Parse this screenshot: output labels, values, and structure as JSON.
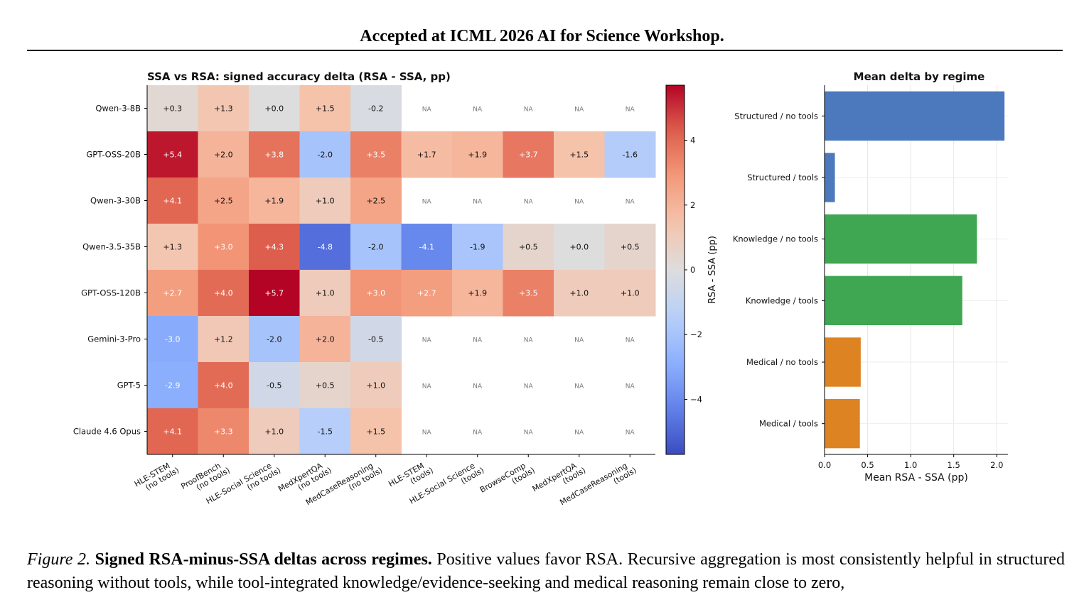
{
  "header": {
    "text": "Accepted at ICML 2026 AI for Science Workshop."
  },
  "chart_data": [
    {
      "type": "heatmap",
      "title": "SSA vs RSA: signed accuracy delta (RSA - SSA, pp)",
      "rows": [
        "Qwen-3-8B",
        "GPT-OSS-20B",
        "Qwen-3-30B",
        "Qwen-3.5-35B",
        "GPT-OSS-120B",
        "Gemini-3-Pro",
        "GPT-5",
        "Claude 4.6 Opus"
      ],
      "columns": [
        "HLE-STEM\n(no tools)",
        "ProofBench\n(no tools)",
        "HLE-Social Science\n(no tools)",
        "MedXpertQA\n(no tools)",
        "MedCaseReasoning\n(no tools)",
        "HLE-STEM\n(tools)",
        "HLE-Social Science\n(tools)",
        "BrowseComp\n(tools)",
        "MedXpertQA\n(tools)",
        "MedCaseReasoning\n(tools)"
      ],
      "values": [
        [
          0.3,
          1.3,
          0.0,
          1.5,
          -0.2,
          null,
          null,
          null,
          null,
          null
        ],
        [
          5.4,
          2.0,
          3.8,
          -2.0,
          3.5,
          1.7,
          1.9,
          3.7,
          1.5,
          -1.6
        ],
        [
          4.1,
          2.5,
          1.9,
          1.0,
          2.5,
          null,
          null,
          null,
          null,
          null
        ],
        [
          1.3,
          3.0,
          4.3,
          -4.8,
          -2.0,
          -4.1,
          -1.9,
          0.5,
          0.0,
          0.5
        ],
        [
          2.7,
          4.0,
          5.7,
          1.0,
          3.0,
          2.7,
          1.9,
          3.5,
          1.0,
          1.0
        ],
        [
          -3.0,
          1.2,
          -2.0,
          2.0,
          -0.5,
          null,
          null,
          null,
          null,
          null
        ],
        [
          -2.9,
          4.0,
          -0.5,
          0.5,
          1.0,
          null,
          null,
          null,
          null,
          null
        ],
        [
          4.1,
          3.3,
          1.0,
          -1.5,
          1.5,
          null,
          null,
          null,
          null,
          null
        ]
      ],
      "cell_labels": [
        [
          "+0.3",
          "+1.3",
          "+0.0",
          "+1.5",
          "-0.2",
          "NA",
          "NA",
          "NA",
          "NA",
          "NA"
        ],
        [
          "+5.4",
          "+2.0",
          "+3.8",
          "-2.0",
          "+3.5",
          "+1.7",
          "+1.9",
          "+3.7",
          "+1.5",
          "-1.6"
        ],
        [
          "+4.1",
          "+2.5",
          "+1.9",
          "+1.0",
          "+2.5",
          "NA",
          "NA",
          "NA",
          "NA",
          "NA"
        ],
        [
          "+1.3",
          "+3.0",
          "+4.3",
          "-4.8",
          "-2.0",
          "-4.1",
          "-1.9",
          "+0.5",
          "+0.0",
          "+0.5"
        ],
        [
          "+2.7",
          "+4.0",
          "+5.7",
          "+1.0",
          "+3.0",
          "+2.7",
          "+1.9",
          "+3.5",
          "+1.0",
          "+1.0"
        ],
        [
          "-3.0",
          "+1.2",
          "-2.0",
          "+2.0",
          "-0.5",
          "NA",
          "NA",
          "NA",
          "NA",
          "NA"
        ],
        [
          "-2.9",
          "+4.0",
          "-0.5",
          "+0.5",
          "+1.0",
          "NA",
          "NA",
          "NA",
          "NA",
          "NA"
        ],
        [
          "+4.1",
          "+3.3",
          "+1.0",
          "-1.5",
          "+1.5",
          "NA",
          "NA",
          "NA",
          "NA",
          "NA"
        ]
      ],
      "colorbar": {
        "label": "RSA - SSA (pp)",
        "range": [
          -5.7,
          5.7
        ],
        "ticks": [
          4,
          2,
          0,
          -2,
          -4
        ],
        "tick_labels": [
          "4",
          "2",
          "0",
          "−2",
          "−4"
        ],
        "colormap": "coolwarm",
        "colors": {
          "negative": "#3b4cc0",
          "neutral": "#dddddd",
          "positive": "#b40426"
        }
      }
    },
    {
      "type": "bar",
      "orientation": "horizontal",
      "title": "Mean delta by regime",
      "categories": [
        "Structured / no tools",
        "Structured / tools",
        "Knowledge / no tools",
        "Knowledge / tools",
        "Medical / no tools",
        "Medical / tools"
      ],
      "values": [
        2.09,
        0.12,
        1.77,
        1.6,
        0.42,
        0.41
      ],
      "colors": [
        "#4c78bd",
        "#4c78bd",
        "#3fa652",
        "#3fa652",
        "#de8321",
        "#de8321"
      ],
      "xlabel": "Mean RSA - SSA (pp)",
      "xlim": [
        0,
        2.13
      ],
      "xticks": [
        0.0,
        0.5,
        1.0,
        1.5,
        2.0
      ],
      "xtick_labels": [
        "0.0",
        "0.5",
        "1.0",
        "1.5",
        "2.0"
      ],
      "grid": true
    }
  ],
  "caption": {
    "label": "Figure 2.",
    "title": "Signed RSA-minus-SSA deltas across regimes.",
    "text": "Positive values favor RSA. Recursive aggregation is most consistently helpful in structured reasoning without tools, while tool-integrated knowledge/evidence-seeking and medical reasoning remain close to zero,"
  }
}
